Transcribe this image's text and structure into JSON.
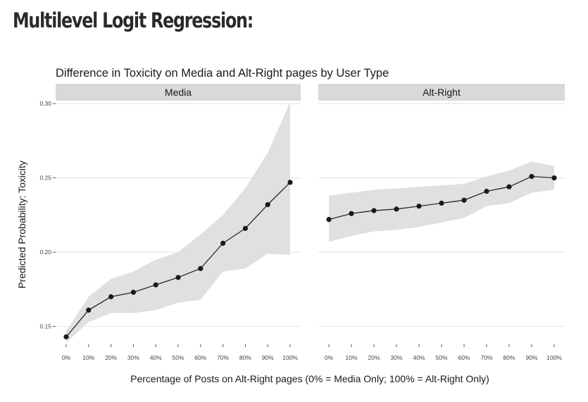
{
  "slide": {
    "title": "Multilevel Logit Regression:"
  },
  "chart_data": {
    "type": "line",
    "title": "Difference in Toxicity on Media and Alt-Right pages by  User Type",
    "xlabel": "Percentage of Posts on Alt-Right pages (0% = Media Only; 100% = Alt-Right Only)",
    "ylabel": "Predicted Probability: Toxicity",
    "categories": [
      "0%",
      "10%",
      "20%",
      "30%",
      "40%",
      "50%",
      "60%",
      "70%",
      "80%",
      "90%",
      "100%"
    ],
    "ylim": [
      0.138,
      0.302
    ],
    "yticks": [
      0.15,
      0.2,
      0.25,
      0.3
    ],
    "ytick_labels": [
      "0.15",
      "0.20",
      "0.25",
      "0.30"
    ],
    "grid": true,
    "confidence_band": true,
    "colors": {
      "line": "#1a1a1a",
      "band": "#e0e0e0",
      "strip": "#d9d9d9",
      "grid": "#e2e2e2"
    },
    "panels": [
      {
        "name": "Media",
        "values": [
          0.143,
          0.161,
          0.17,
          0.173,
          0.178,
          0.183,
          0.189,
          0.206,
          0.216,
          0.232,
          0.247
        ],
        "lower": [
          0.139,
          0.153,
          0.159,
          0.159,
          0.161,
          0.166,
          0.168,
          0.187,
          0.189,
          0.199,
          0.198
        ],
        "upper": [
          0.147,
          0.17,
          0.182,
          0.187,
          0.195,
          0.2,
          0.212,
          0.225,
          0.243,
          0.267,
          0.301
        ]
      },
      {
        "name": "Alt-Right",
        "values": [
          0.222,
          0.226,
          0.228,
          0.229,
          0.231,
          0.233,
          0.235,
          0.241,
          0.244,
          0.251,
          0.25
        ],
        "lower": [
          0.207,
          0.211,
          0.214,
          0.215,
          0.217,
          0.22,
          0.223,
          0.231,
          0.233,
          0.24,
          0.242
        ],
        "upper": [
          0.238,
          0.24,
          0.242,
          0.243,
          0.244,
          0.245,
          0.246,
          0.251,
          0.255,
          0.261,
          0.258
        ]
      }
    ]
  }
}
